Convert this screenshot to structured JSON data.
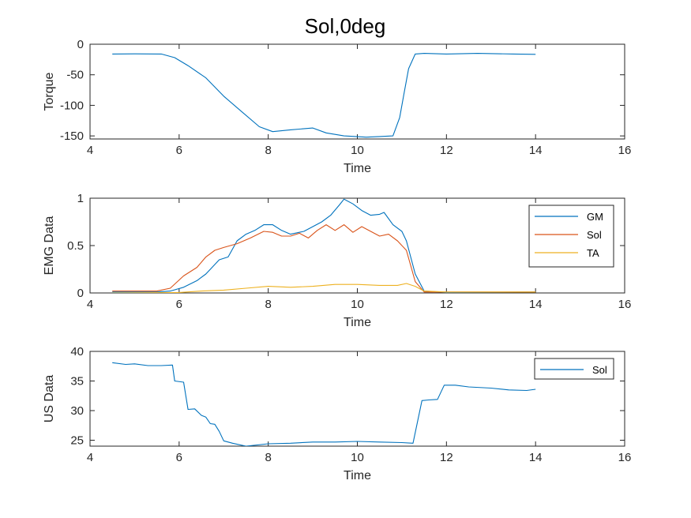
{
  "figure": {
    "title": "Sol,0deg"
  },
  "colors": {
    "blue": "#0072BD",
    "orange": "#D95319",
    "yellow": "#EDB120",
    "axis": "#262626"
  },
  "chart_data": [
    {
      "type": "line",
      "xlabel": "Time",
      "ylabel": "Torque",
      "xlim": [
        4,
        16
      ],
      "ylim": [
        -155,
        0
      ],
      "xticks": [
        4,
        6,
        8,
        10,
        12,
        14,
        16
      ],
      "yticks": [
        -150,
        -100,
        -50,
        0
      ],
      "legend": null,
      "series": [
        {
          "color": "#0072BD",
          "points": [
            [
              4.5,
              -16
            ],
            [
              5.0,
              -15.8
            ],
            [
              5.6,
              -16
            ],
            [
              5.9,
              -22
            ],
            [
              6.2,
              -35
            ],
            [
              6.6,
              -55
            ],
            [
              7.0,
              -85
            ],
            [
              7.4,
              -110
            ],
            [
              7.8,
              -135
            ],
            [
              8.1,
              -143
            ],
            [
              8.5,
              -140
            ],
            [
              9.0,
              -137
            ],
            [
              9.3,
              -145
            ],
            [
              9.7,
              -150
            ],
            [
              10.2,
              -152
            ],
            [
              10.5,
              -151
            ],
            [
              10.8,
              -150
            ],
            [
              10.95,
              -120
            ],
            [
              11.05,
              -80
            ],
            [
              11.15,
              -40
            ],
            [
              11.3,
              -16
            ],
            [
              11.5,
              -15
            ],
            [
              12.0,
              -16
            ],
            [
              12.7,
              -15
            ],
            [
              13.5,
              -16
            ],
            [
              14.0,
              -16.5
            ]
          ]
        }
      ]
    },
    {
      "type": "line",
      "xlabel": "Time",
      "ylabel": "EMG Data",
      "xlim": [
        4,
        16
      ],
      "ylim": [
        0,
        1
      ],
      "xticks": [
        4,
        6,
        8,
        10,
        12,
        14,
        16
      ],
      "yticks": [
        0,
        0.5,
        1
      ],
      "legend": "top-right",
      "series": [
        {
          "name": "GM",
          "color": "#0072BD",
          "points": [
            [
              4.5,
              0.01
            ],
            [
              5.5,
              0.01
            ],
            [
              5.8,
              0.02
            ],
            [
              6.1,
              0.06
            ],
            [
              6.4,
              0.13
            ],
            [
              6.6,
              0.2
            ],
            [
              6.9,
              0.35
            ],
            [
              7.1,
              0.38
            ],
            [
              7.3,
              0.55
            ],
            [
              7.5,
              0.62
            ],
            [
              7.7,
              0.66
            ],
            [
              7.9,
              0.72
            ],
            [
              8.1,
              0.72
            ],
            [
              8.3,
              0.66
            ],
            [
              8.5,
              0.62
            ],
            [
              8.8,
              0.65
            ],
            [
              9.0,
              0.7
            ],
            [
              9.2,
              0.75
            ],
            [
              9.4,
              0.82
            ],
            [
              9.6,
              0.93
            ],
            [
              9.7,
              0.99
            ],
            [
              9.9,
              0.94
            ],
            [
              10.1,
              0.87
            ],
            [
              10.3,
              0.82
            ],
            [
              10.5,
              0.83
            ],
            [
              10.6,
              0.85
            ],
            [
              10.8,
              0.72
            ],
            [
              11.0,
              0.65
            ],
            [
              11.1,
              0.55
            ],
            [
              11.3,
              0.2
            ],
            [
              11.5,
              0.02
            ],
            [
              12.0,
              0.005
            ],
            [
              14.0,
              0.01
            ]
          ]
        },
        {
          "name": "Sol",
          "color": "#D95319",
          "points": [
            [
              4.5,
              0.02
            ],
            [
              5.5,
              0.02
            ],
            [
              5.8,
              0.05
            ],
            [
              6.1,
              0.18
            ],
            [
              6.4,
              0.27
            ],
            [
              6.6,
              0.38
            ],
            [
              6.8,
              0.45
            ],
            [
              7.0,
              0.48
            ],
            [
              7.3,
              0.52
            ],
            [
              7.6,
              0.58
            ],
            [
              7.9,
              0.65
            ],
            [
              8.1,
              0.64
            ],
            [
              8.3,
              0.6
            ],
            [
              8.5,
              0.6
            ],
            [
              8.7,
              0.63
            ],
            [
              8.9,
              0.58
            ],
            [
              9.1,
              0.66
            ],
            [
              9.3,
              0.72
            ],
            [
              9.5,
              0.66
            ],
            [
              9.7,
              0.72
            ],
            [
              9.9,
              0.64
            ],
            [
              10.1,
              0.7
            ],
            [
              10.3,
              0.65
            ],
            [
              10.5,
              0.6
            ],
            [
              10.7,
              0.62
            ],
            [
              10.9,
              0.55
            ],
            [
              11.1,
              0.45
            ],
            [
              11.3,
              0.12
            ],
            [
              11.5,
              0.01
            ],
            [
              12.0,
              0.01
            ],
            [
              14.0,
              0.01
            ]
          ]
        },
        {
          "name": "TA",
          "color": "#EDB120",
          "points": [
            [
              4.5,
              0.0
            ],
            [
              6.0,
              0.005
            ],
            [
              6.5,
              0.02
            ],
            [
              7.0,
              0.03
            ],
            [
              7.5,
              0.05
            ],
            [
              8.0,
              0.07
            ],
            [
              8.5,
              0.06
            ],
            [
              9.0,
              0.07
            ],
            [
              9.5,
              0.09
            ],
            [
              10.0,
              0.09
            ],
            [
              10.5,
              0.08
            ],
            [
              10.9,
              0.08
            ],
            [
              11.1,
              0.1
            ],
            [
              11.3,
              0.07
            ],
            [
              11.5,
              0.02
            ],
            [
              12.0,
              0.01
            ],
            [
              14.0,
              0.01
            ]
          ]
        }
      ]
    },
    {
      "type": "line",
      "xlabel": "Time",
      "ylabel": "US Data",
      "xlim": [
        4,
        16
      ],
      "ylim": [
        24,
        40
      ],
      "xticks": [
        4,
        6,
        8,
        10,
        12,
        14,
        16
      ],
      "yticks": [
        25,
        30,
        35,
        40
      ],
      "legend": "top-right",
      "series": [
        {
          "name": "Sol",
          "color": "#0072BD",
          "points": [
            [
              4.5,
              38.1
            ],
            [
              4.8,
              37.8
            ],
            [
              5.0,
              37.9
            ],
            [
              5.3,
              37.6
            ],
            [
              5.6,
              37.6
            ],
            [
              5.85,
              37.7
            ],
            [
              5.9,
              35.0
            ],
            [
              6.1,
              34.8
            ],
            [
              6.2,
              30.2
            ],
            [
              6.35,
              30.3
            ],
            [
              6.5,
              29.2
            ],
            [
              6.6,
              28.9
            ],
            [
              6.7,
              27.8
            ],
            [
              6.8,
              27.7
            ],
            [
              6.9,
              26.5
            ],
            [
              7.0,
              24.9
            ],
            [
              7.2,
              24.5
            ],
            [
              7.5,
              24.0
            ],
            [
              8.0,
              24.4
            ],
            [
              8.5,
              24.5
            ],
            [
              9.0,
              24.7
            ],
            [
              9.5,
              24.7
            ],
            [
              10.0,
              24.8
            ],
            [
              10.5,
              24.7
            ],
            [
              11.0,
              24.6
            ],
            [
              11.25,
              24.5
            ],
            [
              11.45,
              31.7
            ],
            [
              11.6,
              31.8
            ],
            [
              11.8,
              31.9
            ],
            [
              11.95,
              34.3
            ],
            [
              12.2,
              34.3
            ],
            [
              12.5,
              34.0
            ],
            [
              13.0,
              33.8
            ],
            [
              13.4,
              33.5
            ],
            [
              13.8,
              33.4
            ],
            [
              14.0,
              33.6
            ]
          ]
        }
      ]
    }
  ]
}
